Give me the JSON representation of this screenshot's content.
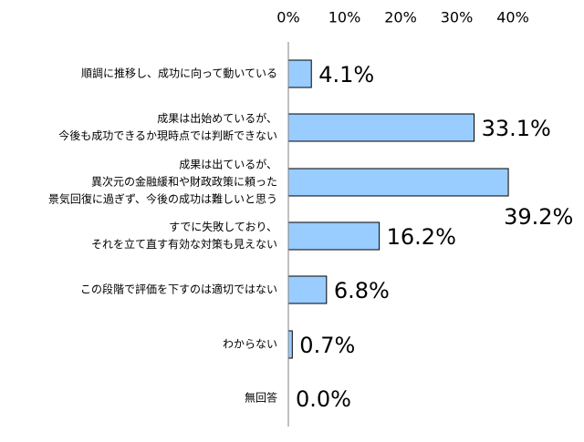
{
  "chart_data": {
    "type": "bar",
    "orientation": "horizontal",
    "categories": [
      [
        "順調に推移し、成功に向って動いている"
      ],
      [
        "成果は出始めているが、",
        "今後も成功できるか現時点では判断できない"
      ],
      [
        "成果は出ているが、",
        "異次元の金融緩和や財政政策に頼った",
        "景気回復に過ぎず、今後の成功は難しいと思う"
      ],
      [
        "すでに失敗しており、",
        "それを立て直す有効な対策も見えない"
      ],
      [
        "この段階で評価を下すのは適切ではない"
      ],
      [
        "わからない"
      ],
      [
        "無回答"
      ]
    ],
    "values": [
      4.1,
      33.1,
      39.2,
      16.2,
      6.8,
      0.7,
      0.0
    ],
    "data_labels": [
      "4.1%",
      "33.1%",
      "39.2%",
      "16.2%",
      "6.8%",
      "0.7%",
      "0.0%"
    ],
    "x_ticks": [
      "0%",
      "10%",
      "20%",
      "30%",
      "40%"
    ],
    "xlim": [
      0,
      40
    ],
    "title": "",
    "xlabel": "",
    "ylabel": "",
    "grid": false,
    "legend": "none",
    "axis_position": "top"
  },
  "colors": {
    "bar_fill": "#99ccff",
    "bar_stroke": "#000000",
    "axis": "#808080",
    "text": "#000000"
  }
}
